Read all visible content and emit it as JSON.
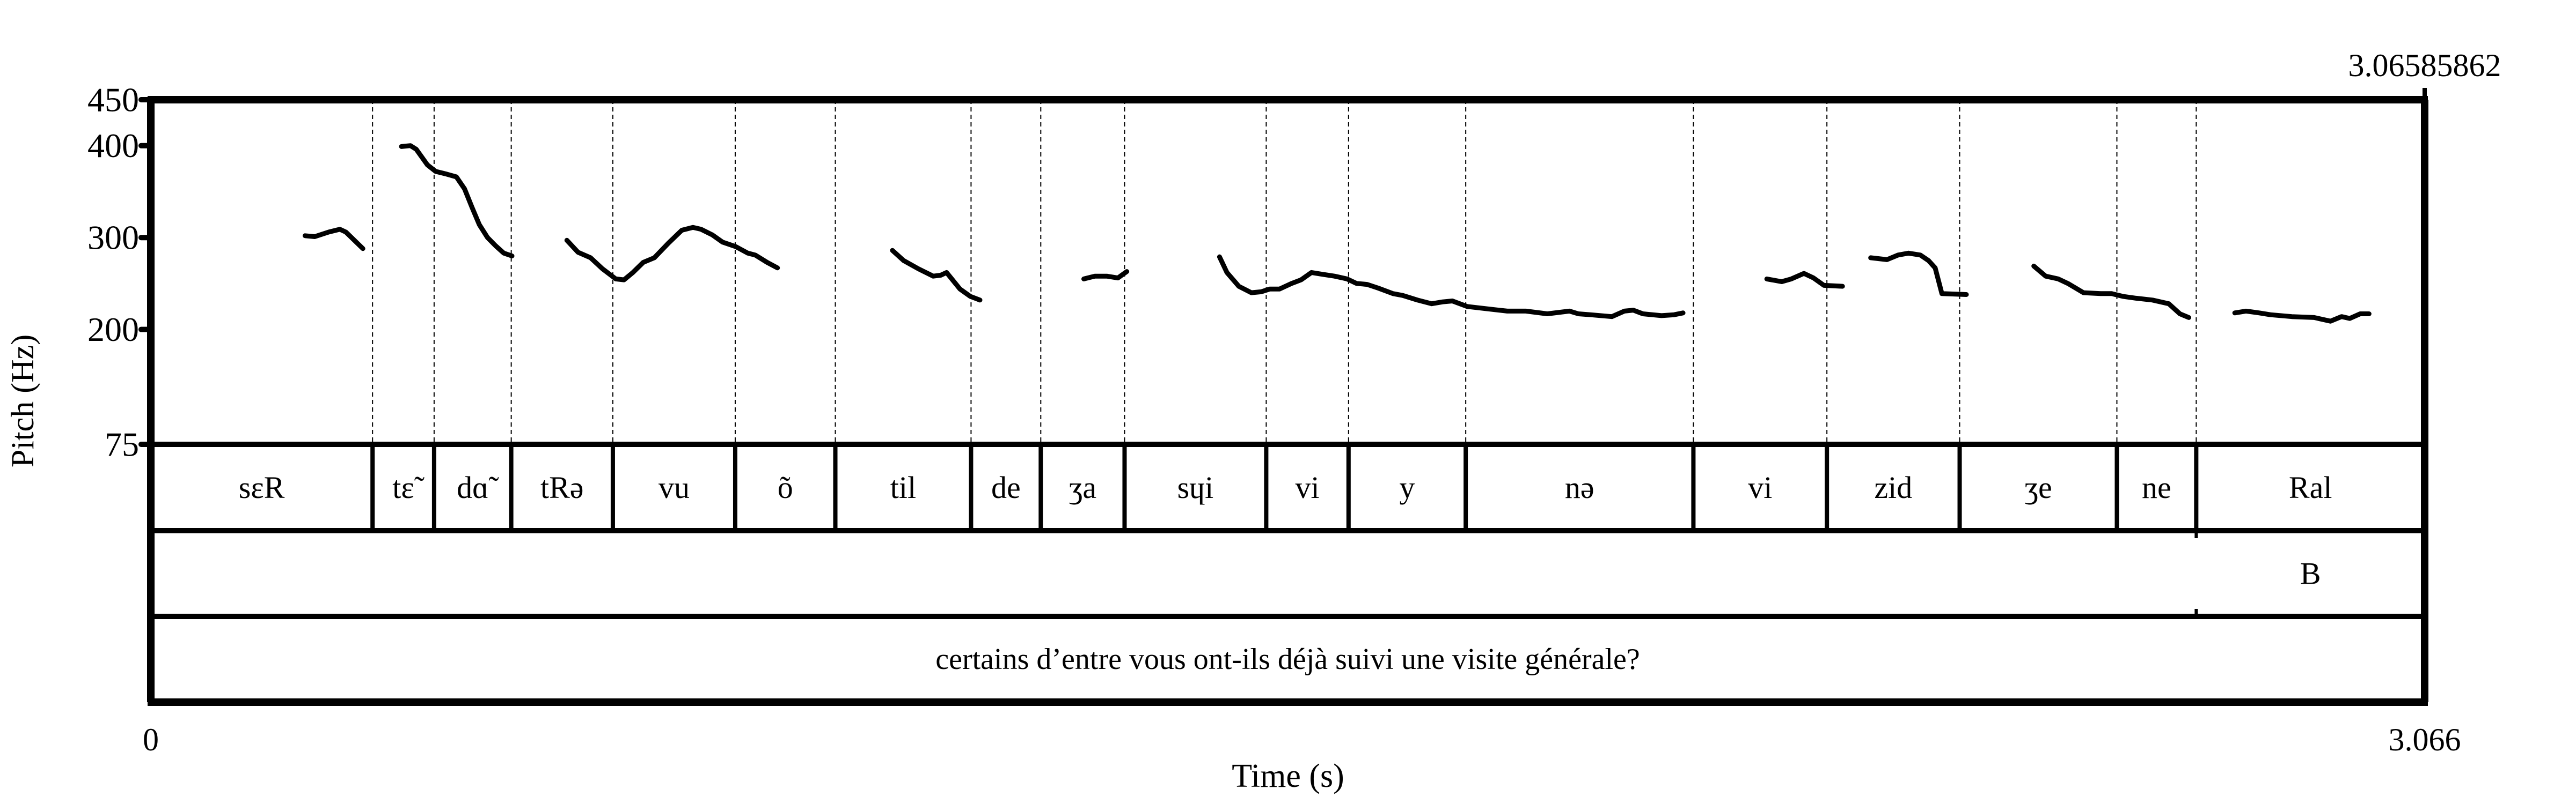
{
  "chart_data": {
    "type": "line",
    "ylabel": "Pitch (Hz)",
    "xlabel": "Time (s)",
    "xlim": [
      0,
      3.066
    ],
    "ylim": [
      75,
      450
    ],
    "yticks": [
      75,
      200,
      300,
      400,
      450
    ],
    "ytick_labels": [
      "75",
      "200",
      "300",
      "400",
      "450"
    ],
    "xtick_labels": [
      "0",
      "3.066"
    ],
    "cursor_label": "3.06585862",
    "grid": false,
    "line_color": "#000000",
    "pitch_segments": [
      [
        [
          0.208,
          302
        ],
        [
          0.221,
          301
        ],
        [
          0.24,
          306
        ],
        [
          0.255,
          309
        ],
        [
          0.263,
          306
        ],
        [
          0.286,
          288
        ]
      ],
      [
        [
          0.338,
          399
        ],
        [
          0.35,
          400
        ],
        [
          0.358,
          396
        ],
        [
          0.373,
          379
        ],
        [
          0.384,
          372
        ],
        [
          0.399,
          369
        ],
        [
          0.412,
          366
        ],
        [
          0.423,
          353
        ],
        [
          0.433,
          333
        ],
        [
          0.443,
          314
        ],
        [
          0.454,
          300
        ],
        [
          0.465,
          291
        ],
        [
          0.476,
          283
        ],
        [
          0.487,
          280
        ]
      ],
      [
        [
          0.561,
          297
        ],
        [
          0.576,
          284
        ],
        [
          0.593,
          278
        ],
        [
          0.609,
          266
        ],
        [
          0.627,
          255
        ],
        [
          0.638,
          254
        ],
        [
          0.65,
          262
        ],
        [
          0.664,
          273
        ],
        [
          0.679,
          278
        ],
        [
          0.698,
          294
        ],
        [
          0.716,
          308
        ],
        [
          0.731,
          311
        ],
        [
          0.742,
          309
        ],
        [
          0.757,
          303
        ],
        [
          0.771,
          295
        ],
        [
          0.789,
          290
        ],
        [
          0.805,
          283
        ],
        [
          0.815,
          281
        ],
        [
          0.831,
          273
        ],
        [
          0.845,
          267
        ]
      ],
      [
        [
          1.0,
          286
        ],
        [
          1.015,
          275
        ],
        [
          1.035,
          266
        ],
        [
          1.055,
          258
        ],
        [
          1.065,
          259
        ],
        [
          1.073,
          262
        ],
        [
          1.091,
          244
        ],
        [
          1.105,
          236
        ],
        [
          1.118,
          232
        ]
      ],
      [
        [
          1.258,
          255
        ],
        [
          1.273,
          258
        ],
        [
          1.289,
          258
        ],
        [
          1.304,
          256
        ],
        [
          1.316,
          263
        ]
      ],
      [
        [
          1.441,
          279
        ],
        [
          1.451,
          262
        ],
        [
          1.467,
          247
        ],
        [
          1.484,
          240
        ],
        [
          1.497,
          241
        ],
        [
          1.509,
          244
        ],
        [
          1.522,
          244
        ],
        [
          1.538,
          250
        ],
        [
          1.551,
          254
        ],
        [
          1.565,
          262
        ],
        [
          1.58,
          260
        ],
        [
          1.596,
          258
        ],
        [
          1.613,
          255
        ],
        [
          1.626,
          250
        ],
        [
          1.64,
          249
        ],
        [
          1.655,
          245
        ],
        [
          1.675,
          239
        ],
        [
          1.688,
          237
        ],
        [
          1.708,
          232
        ],
        [
          1.727,
          228
        ],
        [
          1.742,
          230
        ],
        [
          1.755,
          231
        ],
        [
          1.775,
          225
        ],
        [
          1.796,
          223
        ],
        [
          1.829,
          220
        ],
        [
          1.854,
          220
        ],
        [
          1.883,
          217
        ],
        [
          1.913,
          220
        ],
        [
          1.925,
          217
        ],
        [
          1.941,
          216
        ],
        [
          1.97,
          214
        ],
        [
          1.987,
          220
        ],
        [
          1.999,
          221
        ],
        [
          2.012,
          217
        ],
        [
          2.037,
          215
        ],
        [
          2.054,
          216
        ],
        [
          2.066,
          218
        ]
      ],
      [
        [
          2.179,
          255
        ],
        [
          2.199,
          252
        ],
        [
          2.212,
          255
        ],
        [
          2.229,
          261
        ],
        [
          2.242,
          256
        ],
        [
          2.256,
          248
        ],
        [
          2.281,
          247
        ]
      ],
      [
        [
          2.319,
          278
        ],
        [
          2.341,
          276
        ],
        [
          2.356,
          281
        ],
        [
          2.37,
          283
        ],
        [
          2.386,
          281
        ],
        [
          2.397,
          275
        ],
        [
          2.406,
          267
        ],
        [
          2.415,
          239
        ],
        [
          2.448,
          238
        ]
      ],
      [
        [
          2.539,
          269
        ],
        [
          2.555,
          258
        ],
        [
          2.572,
          255
        ],
        [
          2.585,
          250
        ],
        [
          2.606,
          240
        ],
        [
          2.629,
          239
        ],
        [
          2.644,
          239
        ],
        [
          2.659,
          236
        ],
        [
          2.677,
          234
        ],
        [
          2.699,
          232
        ],
        [
          2.721,
          228
        ],
        [
          2.736,
          217
        ],
        [
          2.748,
          213
        ]
      ],
      [
        [
          2.81,
          218
        ],
        [
          2.825,
          220
        ],
        [
          2.843,
          218
        ],
        [
          2.858,
          216
        ],
        [
          2.887,
          214
        ],
        [
          2.917,
          213
        ],
        [
          2.939,
          209
        ],
        [
          2.954,
          214
        ],
        [
          2.965,
          212
        ],
        [
          2.979,
          217
        ],
        [
          2.991,
          217
        ]
      ]
    ],
    "tiers": [
      {
        "intervals": [
          {
            "start": 0,
            "end": 0.299,
            "label": "sɛR"
          },
          {
            "start": 0.299,
            "end": 0.382,
            "label": "tɛ̃"
          },
          {
            "start": 0.382,
            "end": 0.486,
            "label": "dɑ̃"
          },
          {
            "start": 0.486,
            "end": 0.623,
            "label": "tRə"
          },
          {
            "start": 0.623,
            "end": 0.788,
            "label": "vu"
          },
          {
            "start": 0.788,
            "end": 0.923,
            "label": "õ"
          },
          {
            "start": 0.923,
            "end": 1.106,
            "label": "til"
          },
          {
            "start": 1.106,
            "end": 1.2,
            "label": "de"
          },
          {
            "start": 1.2,
            "end": 1.313,
            "label": "ʒa"
          },
          {
            "start": 1.313,
            "end": 1.504,
            "label": "sɥi"
          },
          {
            "start": 1.504,
            "end": 1.615,
            "label": "vi"
          },
          {
            "start": 1.615,
            "end": 1.773,
            "label": "y"
          },
          {
            "start": 1.773,
            "end": 2.08,
            "label": "nə"
          },
          {
            "start": 2.08,
            "end": 2.26,
            "label": "vi"
          },
          {
            "start": 2.26,
            "end": 2.439,
            "label": "zid"
          },
          {
            "start": 2.439,
            "end": 2.651,
            "label": "ʒe"
          },
          {
            "start": 2.651,
            "end": 2.758,
            "label": "ne"
          },
          {
            "start": 2.758,
            "end": 3.066,
            "label": "Ral"
          }
        ]
      },
      {
        "intervals": [
          {
            "start": 0,
            "end": 2.758,
            "label": ""
          },
          {
            "start": 2.758,
            "end": 3.066,
            "label": "B"
          }
        ]
      },
      {
        "intervals": [
          {
            "start": 0,
            "end": 3.066,
            "label": "certains d’entre vous ont-ils déjà suivi une visite générale?"
          }
        ]
      }
    ]
  }
}
